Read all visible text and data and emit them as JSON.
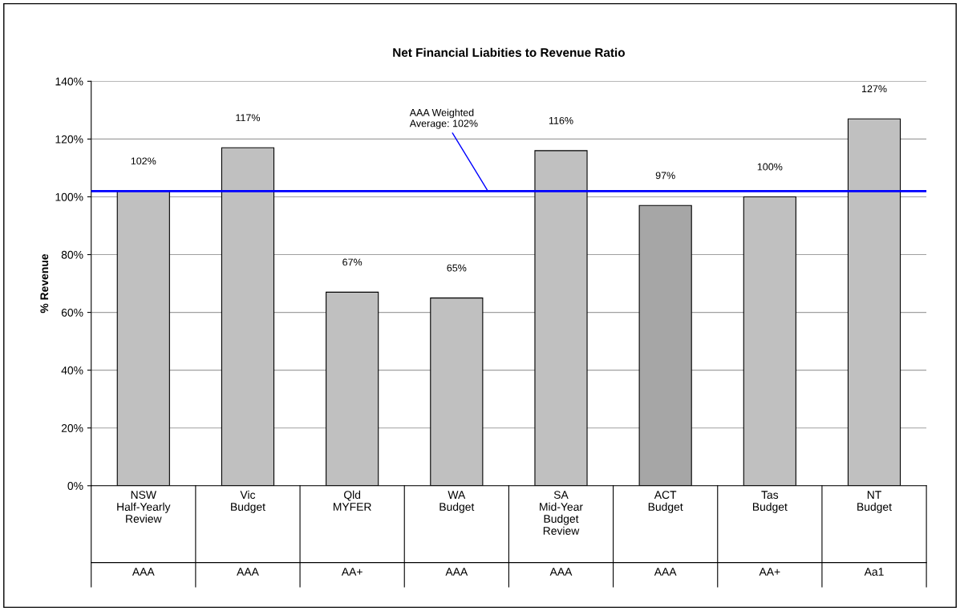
{
  "chart_data": {
    "type": "bar",
    "title": "Net Financial Liabities to Revenue Ratio",
    "ylabel": "% Revenue",
    "categories": [
      "NSW\nHalf-Yearly\nReview\nAAA",
      "Vic\nBudget\nAAA",
      "Qld\nMYFER\nAA+",
      "WA\nBudget\nAAA",
      "SA\nMid-Year\nBudget\nReview\nAAA",
      "ACT\nBudget\nAAA",
      "Tas\nBudget\nAA+",
      "NT\nBudget\nAa1"
    ],
    "values": [
      102,
      117,
      67,
      65,
      116,
      97,
      100,
      127
    ],
    "value_labels": [
      "102%",
      "117%",
      "67%",
      "65%",
      "116%",
      "97%",
      "100%",
      "127%"
    ],
    "colors": [
      "#c0c0c0",
      "#c0c0c0",
      "#c0c0c0",
      "#c0c0c0",
      "#c0c0c0",
      "#a6a6a6",
      "#c0c0c0",
      "#c0c0c0"
    ],
    "ylim": [
      0,
      140
    ],
    "yticks": [
      {
        "value": 0,
        "label": "0%"
      },
      {
        "value": 20,
        "label": "20%"
      },
      {
        "value": 40,
        "label": "40%"
      },
      {
        "value": 60,
        "label": "60%"
      },
      {
        "value": 80,
        "label": "80%"
      },
      {
        "value": 100,
        "label": "100%"
      },
      {
        "value": 120,
        "label": "120%"
      },
      {
        "value": 140,
        "label": "140%"
      }
    ],
    "ref_lines": [
      {
        "axis": "y",
        "value": 102,
        "label": "AAA Weighted\nAverage: 102%",
        "color": "#0000ff"
      }
    ],
    "grid": "y",
    "legend": false
  }
}
